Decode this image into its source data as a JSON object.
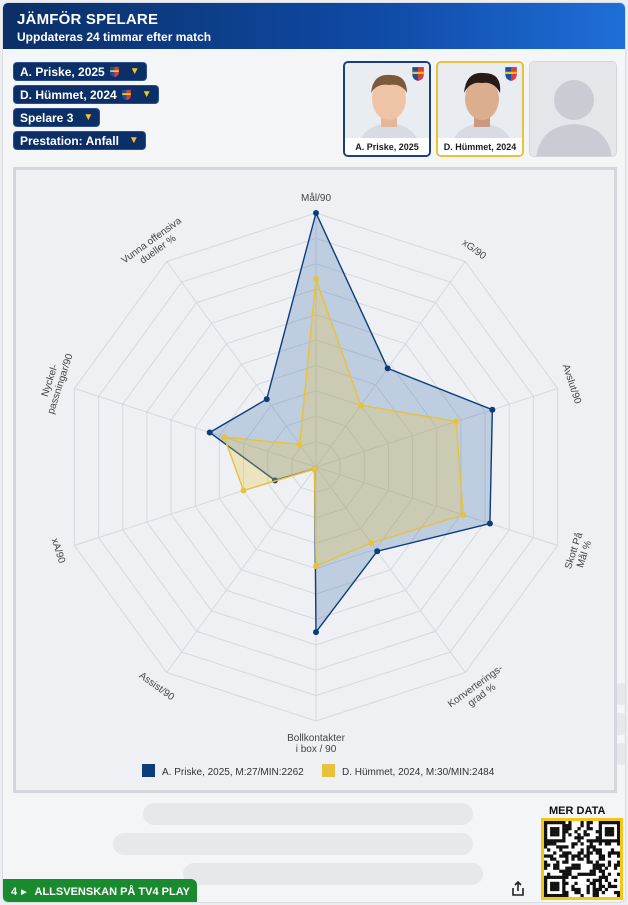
{
  "header": {
    "title": "JÄMFÖR SPELARE",
    "subtitle": "Uppdateras 24 timmar efter match"
  },
  "selectors": [
    {
      "label": "A. Priske, 2025",
      "has_crest": true
    },
    {
      "label": "D. Hümmet, 2024",
      "has_crest": true
    },
    {
      "label": "Spelare 3",
      "has_crest": false
    },
    {
      "label": "Prestation: Anfall",
      "has_crest": false
    }
  ],
  "player_cards": [
    {
      "caption": "A. Priske, 2025",
      "highlight": "#1b3f7e",
      "hair": "#7a5a3a"
    },
    {
      "caption": "D. Hümmet, 2024",
      "highlight": "#e8c23b",
      "hair": "#2a1a14"
    },
    {
      "caption": "",
      "highlight": "",
      "hair": ""
    }
  ],
  "chart_data": {
    "type": "radar",
    "axes": [
      "Mål/90",
      "xG/90",
      "Avslut/90",
      "Skott På Mål %",
      "Konverterings-grad %",
      "Bollkontakter i box / 90",
      "Assist/90",
      "xA/90",
      "Nyckel-passningar/90",
      "Vunna offensiva dueller %"
    ],
    "axis_label_lines": [
      [
        "Mål/90"
      ],
      [
        "xG/90"
      ],
      [
        "Avslut/90"
      ],
      [
        "Skott På",
        "Mål %"
      ],
      [
        "Konverterings-",
        "grad %"
      ],
      [
        "Bollkontakter",
        "i box / 90"
      ],
      [
        "Assist/90"
      ],
      [
        "xA/90"
      ],
      [
        "Nyckel-",
        "passningar/90"
      ],
      [
        "Vunna offensiva",
        "dueller %"
      ]
    ],
    "rings": 10,
    "range": [
      0,
      1
    ],
    "series": [
      {
        "name": "A. Priske, 2025, M:27/MIN:2262",
        "color": "#0b3d7a",
        "fill": "rgba(50,100,170,0.25)",
        "values": [
          1.0,
          0.48,
          0.73,
          0.72,
          0.41,
          0.65,
          0.01,
          0.17,
          0.44,
          0.33
        ]
      },
      {
        "name": "D. Hümmet, 2024, M:30/MIN:2484",
        "color": "#e8c23b",
        "fill": "rgba(232,194,59,0.28)",
        "values": [
          0.74,
          0.3,
          0.58,
          0.61,
          0.37,
          0.39,
          0.01,
          0.3,
          0.38,
          0.11
        ]
      }
    ],
    "legend_position": "bottom"
  },
  "footer": {
    "banner_number": "4",
    "banner_text": "ALLSVENSKAN PÅ TV4 PLAY",
    "more_data": "MER DATA"
  },
  "colors": {
    "header_dark": "#0b2f66",
    "accent_yellow": "#f5c518",
    "banner_green": "#1a8a2e"
  }
}
